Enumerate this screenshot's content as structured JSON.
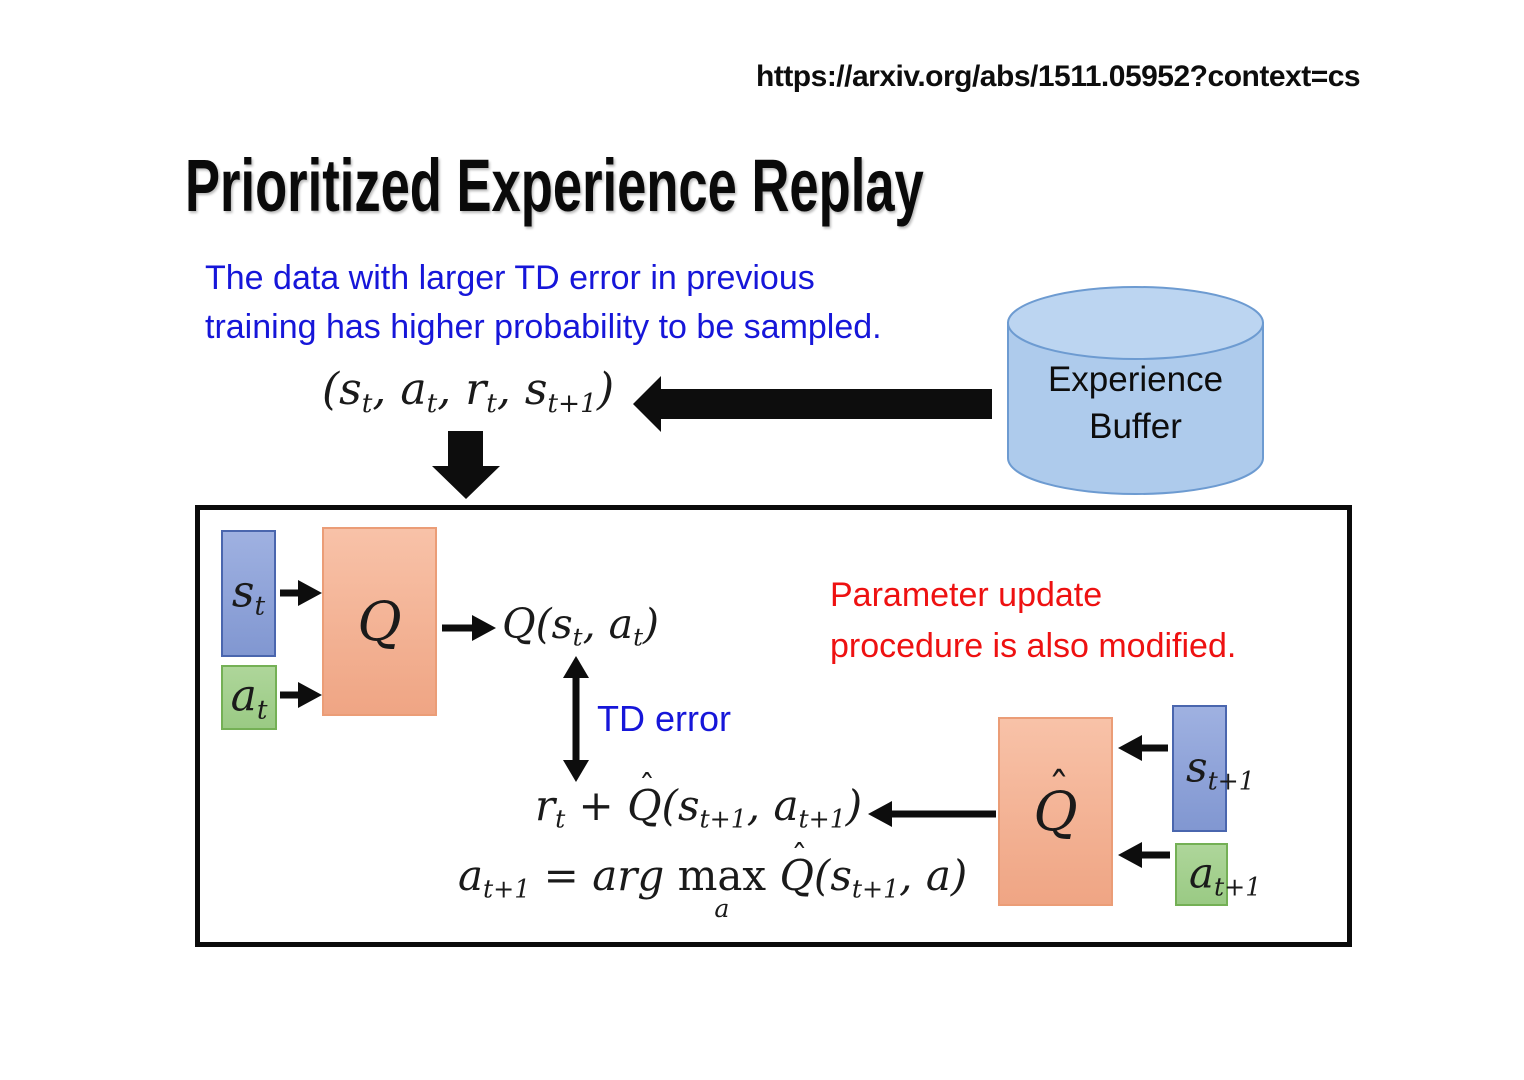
{
  "page": {
    "url": "https://arxiv.org/abs/1511.05952?context=cs",
    "title": "Prioritized Experience Replay"
  },
  "notes": {
    "sampling_line1": "The data with larger TD error in previous",
    "sampling_line2": "training has higher probability to be sampled.",
    "parameter_line1": "Parameter update",
    "parameter_line2": "procedure is also modified.",
    "td_error_label": "TD error"
  },
  "buffer": {
    "label_line1": "Experience",
    "label_line2": "Buffer"
  },
  "math": {
    "transition_tuple": [
      {
        "i": "("
      },
      {
        "i": "s"
      },
      {
        "s": "t"
      },
      {
        "i": ", "
      },
      {
        "i": "a"
      },
      {
        "s": "t"
      },
      {
        "i": ", "
      },
      {
        "i": "r"
      },
      {
        "s": "t"
      },
      {
        "i": ", "
      },
      {
        "i": "s"
      },
      {
        "s": "t+1"
      },
      {
        "i": ")"
      }
    ],
    "q_output": [
      {
        "i": "Q"
      },
      {
        "i": "("
      },
      {
        "i": "s"
      },
      {
        "s": "t"
      },
      {
        "i": ", "
      },
      {
        "i": "a"
      },
      {
        "s": "t"
      },
      {
        "i": ")"
      }
    ],
    "target_value": [
      {
        "i": "r"
      },
      {
        "s": "t"
      },
      {
        "i": " + "
      },
      {
        "h": "Q"
      },
      {
        "i": "("
      },
      {
        "i": "s"
      },
      {
        "s": "t+1"
      },
      {
        "i": ", "
      },
      {
        "i": "a"
      },
      {
        "s": "t+1"
      },
      {
        "i": ")"
      }
    ],
    "action_select": [
      {
        "i": "a"
      },
      {
        "s": "t+1"
      },
      {
        "i": " = arg "
      },
      {
        "u": {
          "m": "max",
          "b": "a"
        }
      },
      {
        "i": " "
      },
      {
        "h": "Q"
      },
      {
        "i": "("
      },
      {
        "i": "s"
      },
      {
        "s": "t+1"
      },
      {
        "i": ", "
      },
      {
        "i": "a"
      },
      {
        "i": ")"
      }
    ],
    "s_t": [
      {
        "i": "s"
      },
      {
        "s": "t"
      }
    ],
    "a_t": [
      {
        "i": "a"
      },
      {
        "s": "t"
      }
    ],
    "q_label": [
      {
        "i": "Q"
      }
    ],
    "q_hat_label": [
      {
        "h": "Q"
      }
    ],
    "s_t1": [
      {
        "i": "s"
      },
      {
        "s": "t+1"
      }
    ],
    "a_t1": [
      {
        "i": "a"
      },
      {
        "s": "t+1"
      }
    ]
  },
  "colors": {
    "note_blue": "#1616d9",
    "note_red": "#ee1111",
    "state_chip_fill": "#8fa3d8",
    "state_chip_border": "#4a66ae",
    "action_chip_fill": "#a4d08f",
    "action_chip_border": "#74b055",
    "network_fill": "#f3b396",
    "network_border": "#eb9d77",
    "buffer_fill": "#aecbec",
    "buffer_border": "#6d9bd1",
    "arrow_black": "#0d0d0d"
  }
}
